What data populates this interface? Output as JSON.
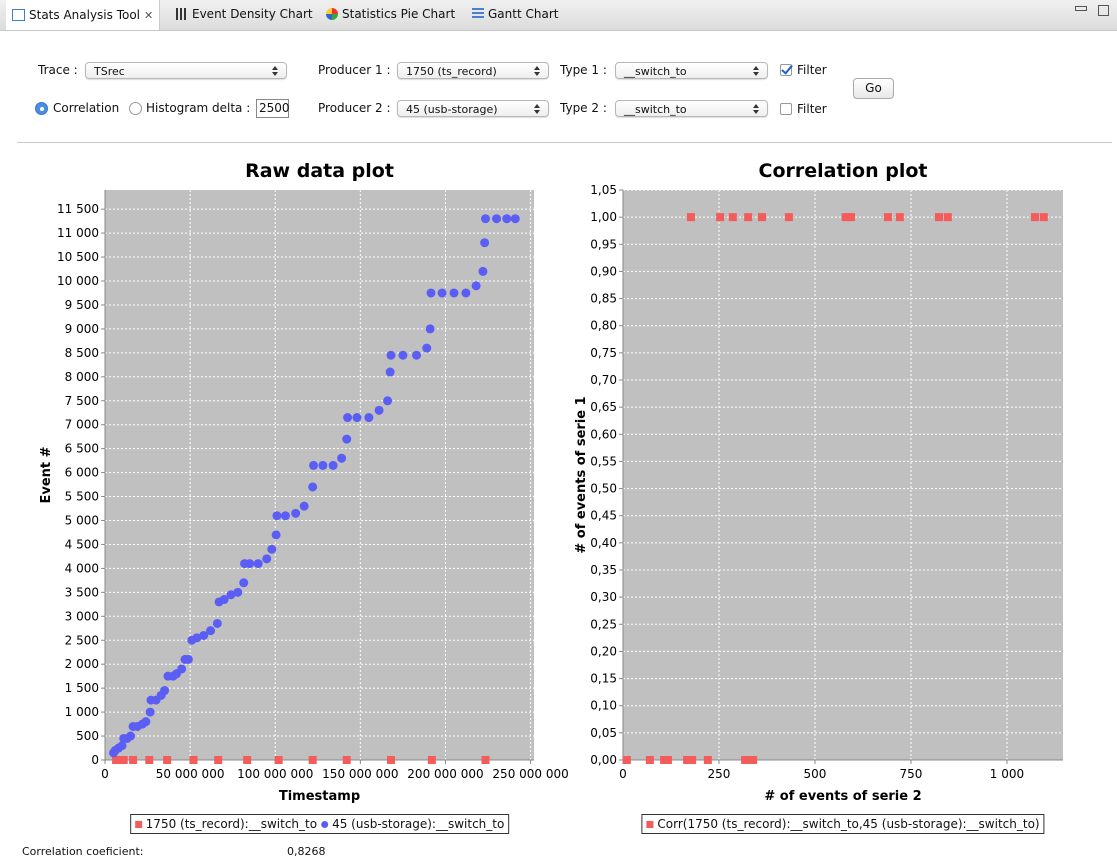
{
  "tabs": [
    "Stats Analysis Tool",
    "Event Density Chart",
    "Statistics Pie Chart",
    "Gantt Chart"
  ],
  "controls": {
    "trace_label": "Trace :",
    "trace": "TSrec",
    "producer1_label": "Producer 1 :",
    "producer1": "1750 (ts_record)",
    "type1_label": "Type 1 :",
    "type1": "__switch_to",
    "filter1": {
      "label": "Filter",
      "checked": true
    },
    "producer2_label": "Producer 2 :",
    "producer2": "45 (usb-storage)",
    "type2_label": "Type 2 :",
    "type2": "__switch_to",
    "filter2": {
      "label": "Filter",
      "checked": false
    },
    "mode_options": [
      {
        "label": "Correlation",
        "selected": true
      },
      {
        "label": "Histogram",
        "selected": false
      }
    ],
    "delta_label": "delta :",
    "delta": "2500",
    "go": "Go"
  },
  "chart_data": [
    {
      "type": "scatter",
      "title": "Raw data plot",
      "x_label": "Timestamp",
      "y_label": "Event #",
      "grid": true,
      "xlim": [
        0,
        252000000
      ],
      "xticks": [
        0,
        {
          "value": 50000000,
          "label": "50 000 000"
        },
        {
          "value": 100000000,
          "label": "100 000 000"
        },
        {
          "value": 150000000,
          "label": "150 000 000"
        },
        {
          "value": 200000000,
          "label": "200 000 000"
        },
        {
          "value": 250000000,
          "label": "250 000 000"
        }
      ],
      "ylim": [
        0,
        11900
      ],
      "yticks": [
        0,
        500,
        {
          "value": 1000,
          "label": "1 000"
        },
        {
          "value": 1500,
          "label": "1 500"
        },
        {
          "value": 2000,
          "label": "2 000"
        },
        {
          "value": 2500,
          "label": "2 500"
        },
        {
          "value": 3000,
          "label": "3 000"
        },
        {
          "value": 3500,
          "label": "3 500"
        },
        {
          "value": 4000,
          "label": "4 000"
        },
        {
          "value": 4500,
          "label": "4 500"
        },
        {
          "value": 5000,
          "label": "5 000"
        },
        {
          "value": 5500,
          "label": "5 500"
        },
        {
          "value": 6000,
          "label": "6 000"
        },
        {
          "value": 6500,
          "label": "6 500"
        },
        {
          "value": 7000,
          "label": "7 000"
        },
        {
          "value": 7500,
          "label": "7 500"
        },
        {
          "value": 8000,
          "label": "8 000"
        },
        {
          "value": 8500,
          "label": "8 500"
        },
        {
          "value": 9000,
          "label": "9 000"
        },
        {
          "value": 9500,
          "label": "9 500"
        },
        {
          "value": 10000,
          "label": "10 000"
        },
        {
          "value": 10500,
          "label": "10 500"
        },
        {
          "value": 11000,
          "label": "11 000"
        },
        {
          "value": 11500,
          "label": "11 500"
        }
      ],
      "series": [
        {
          "name": "1750 (ts_record):__switch_to",
          "color": "#f45b5b",
          "marker": "square",
          "x": [
            6500000,
            11000000,
            16500000,
            26000000,
            36500000,
            52000000,
            66500000,
            83500000,
            102000000,
            122000000,
            142000000,
            168000000,
            192000000,
            223500000
          ],
          "values": [
            0,
            0,
            0,
            0,
            0,
            0,
            0,
            0,
            0,
            0,
            0,
            0,
            0,
            0
          ]
        },
        {
          "name": "45 (usb-storage):__switch_to",
          "color": "#5b5ef4",
          "marker": "circle",
          "x": [
            5000000,
            6000000,
            8000000,
            10000000,
            11000000,
            13000000,
            15000000,
            16500000,
            19000000,
            22000000,
            24000000,
            26500000,
            27000000,
            30000000,
            33000000,
            35000000,
            37000000,
            40000000,
            42000000,
            45000000,
            47000000,
            49000000,
            51000000,
            54000000,
            58000000,
            62000000,
            66000000,
            67000000,
            70000000,
            74000000,
            78000000,
            81500000,
            82000000,
            85000000,
            90000000,
            95000000,
            98000000,
            100500000,
            101000000,
            106000000,
            112000000,
            117000000,
            122000000,
            122500000,
            128000000,
            134000000,
            139000000,
            142000000,
            142500000,
            148000000,
            155000000,
            161000000,
            166000000,
            167500000,
            168000000,
            175000000,
            183000000,
            189000000,
            191000000,
            191500000,
            198000000,
            205000000,
            212000000,
            218000000,
            222000000,
            223000000,
            223500000,
            230000000,
            236000000,
            241000000
          ],
          "values": [
            150,
            200,
            250,
            300,
            450,
            450,
            500,
            700,
            700,
            750,
            800,
            1000,
            1250,
            1250,
            1350,
            1450,
            1750,
            1750,
            1800,
            1900,
            2100,
            2100,
            2500,
            2550,
            2600,
            2700,
            2850,
            3300,
            3350,
            3450,
            3500,
            3700,
            4100,
            4100,
            4100,
            4200,
            4400,
            4700,
            5100,
            5100,
            5150,
            5300,
            5700,
            6150,
            6150,
            6150,
            6300,
            6700,
            7150,
            7150,
            7150,
            7300,
            7500,
            8100,
            8450,
            8450,
            8450,
            8600,
            9000,
            9750,
            9750,
            9750,
            9750,
            9900,
            10200,
            10800,
            11300,
            11300,
            11300,
            11300
          ]
        }
      ]
    },
    {
      "type": "scatter",
      "title": "Correlation plot",
      "x_label": "# of events of serie 2",
      "y_label": "# of events of serie 1",
      "grid": true,
      "xlim": [
        0,
        1146
      ],
      "xticks": [
        0,
        250,
        500,
        750,
        {
          "value": 1000,
          "label": "1 000"
        }
      ],
      "ylim": [
        0,
        1.05
      ],
      "yticks": [
        {
          "value": 0,
          "label": "0,00"
        },
        {
          "value": 0.05,
          "label": "0,05"
        },
        {
          "value": 0.1,
          "label": "0,10"
        },
        {
          "value": 0.15,
          "label": "0,15"
        },
        {
          "value": 0.2,
          "label": "0,20"
        },
        {
          "value": 0.25,
          "label": "0,25"
        },
        {
          "value": 0.3,
          "label": "0,30"
        },
        {
          "value": 0.35,
          "label": "0,35"
        },
        {
          "value": 0.4,
          "label": "0,40"
        },
        {
          "value": 0.45,
          "label": "0,45"
        },
        {
          "value": 0.5,
          "label": "0,50"
        },
        {
          "value": 0.55,
          "label": "0,55"
        },
        {
          "value": 0.6,
          "label": "0,60"
        },
        {
          "value": 0.65,
          "label": "0,65"
        },
        {
          "value": 0.7,
          "label": "0,70"
        },
        {
          "value": 0.75,
          "label": "0,75"
        },
        {
          "value": 0.8,
          "label": "0,80"
        },
        {
          "value": 0.85,
          "label": "0,85"
        },
        {
          "value": 0.9,
          "label": "0,90"
        },
        {
          "value": 0.95,
          "label": "0,95"
        },
        {
          "value": 1,
          "label": "1,00"
        },
        {
          "value": 1.05,
          "label": "1,05"
        }
      ],
      "series": [
        {
          "name": "Corr(1750 (ts_record):__switch_to,45 (usb-storage):__switch_to)",
          "color": "#f45b5b",
          "marker": "square",
          "x": [
            10,
            70,
            107,
            117,
            167,
            180,
            221,
            318,
            328,
            339,
            177,
            253,
            286,
            326,
            362,
            432,
            580,
            594,
            690,
            721,
            823,
            846,
            1073,
            1096
          ],
          "values": [
            0,
            0,
            0,
            0,
            0,
            0,
            0,
            0,
            0,
            0,
            1,
            1,
            1,
            1,
            1,
            1,
            1,
            1,
            1,
            1,
            1,
            1,
            1,
            1
          ]
        }
      ]
    }
  ],
  "footer": {
    "label": "Correlation coeficient:",
    "value": "0,8268"
  }
}
